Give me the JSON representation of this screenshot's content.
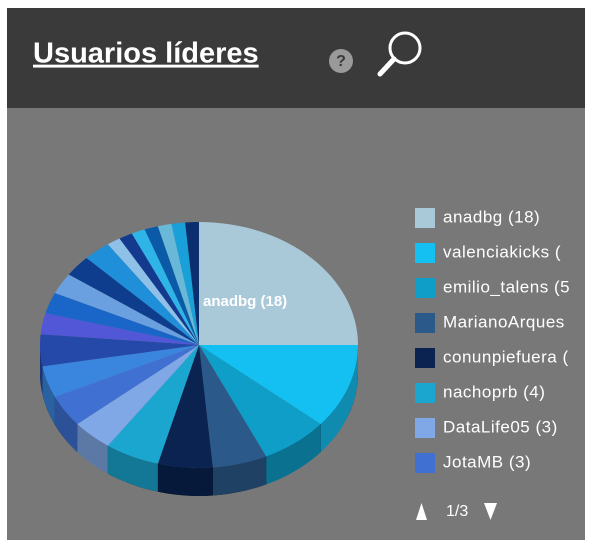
{
  "header": {
    "title": "Usuarios líderes"
  },
  "chart_data": {
    "type": "pie",
    "categories": [
      "anadbg (18)",
      "valenciakicks (",
      "emilio_talens (5",
      "MarianoArques",
      "conunpiefuera (",
      "nachoprb (4)",
      "DataLife05 (3)",
      "JotaMB (3)",
      null,
      null,
      null,
      null,
      null,
      null,
      null,
      null,
      null,
      null,
      null,
      null,
      null,
      null
    ],
    "values": [
      18,
      8,
      5,
      4,
      4,
      4,
      3,
      3,
      3,
      3,
      2,
      2,
      2,
      2,
      2,
      1,
      1,
      1,
      1,
      1,
      1,
      1
    ],
    "colors": [
      "#a9c9d9",
      "#14c0f2",
      "#0e9ec8",
      "#2b5a8a",
      "#0a2350",
      "#1aa6cf",
      "#80a8e6",
      "#3f70d2",
      "#3a86df",
      "#2549a8",
      "#5157d6",
      "#1a66c8",
      "#6aa0e0",
      "#0d3d8c",
      "#1e8fd8",
      "#8ec0e8",
      "#143a90",
      "#2fb4e8",
      "#0a5aa8",
      "#6ab8d8",
      "#1aa0d8",
      "#0b2e6e"
    ],
    "pager": "1/3"
  }
}
